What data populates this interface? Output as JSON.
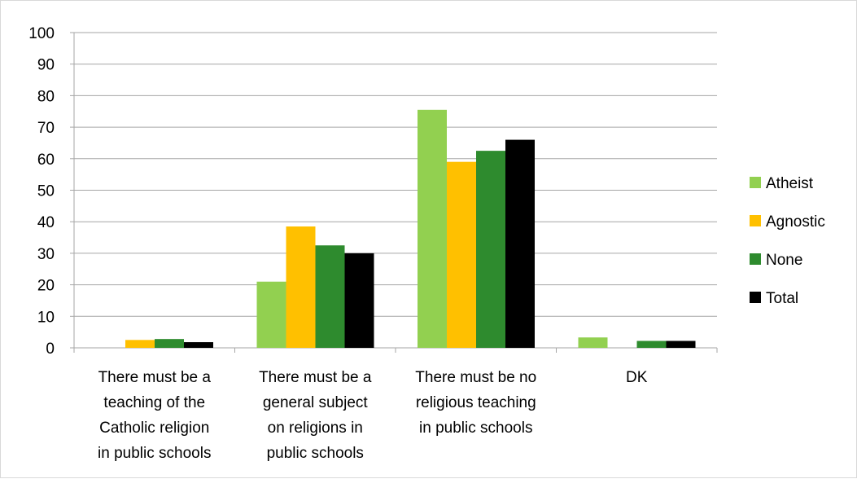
{
  "chart_data": {
    "type": "bar",
    "categories": [
      [
        "There must be a",
        "teaching of the",
        "Catholic religion",
        "in public schools"
      ],
      [
        "There must be a",
        "general subject",
        "on religions in",
        "public schools"
      ],
      [
        "There must be no",
        "religious teaching",
        "in public schools"
      ],
      [
        "DK"
      ]
    ],
    "series": [
      {
        "name": "Atheist",
        "color": "#92d050",
        "values": [
          0,
          21,
          75.5,
          3.3
        ]
      },
      {
        "name": "Agnostic",
        "color": "#ffc000",
        "values": [
          2.5,
          38.5,
          59,
          0
        ]
      },
      {
        "name": "None",
        "color": "#2e8b2e",
        "values": [
          2.8,
          32.5,
          62.5,
          2.2
        ]
      },
      {
        "name": "Total",
        "color": "#000000",
        "values": [
          1.8,
          30,
          66,
          2.2
        ]
      }
    ],
    "yticks": [
      "0",
      "10",
      "20",
      "30",
      "40",
      "50",
      "60",
      "70",
      "80",
      "90",
      "100"
    ],
    "ylim": [
      0,
      100
    ],
    "grid": true,
    "legend_position": "right",
    "title": "",
    "xlabel": "",
    "ylabel": ""
  }
}
